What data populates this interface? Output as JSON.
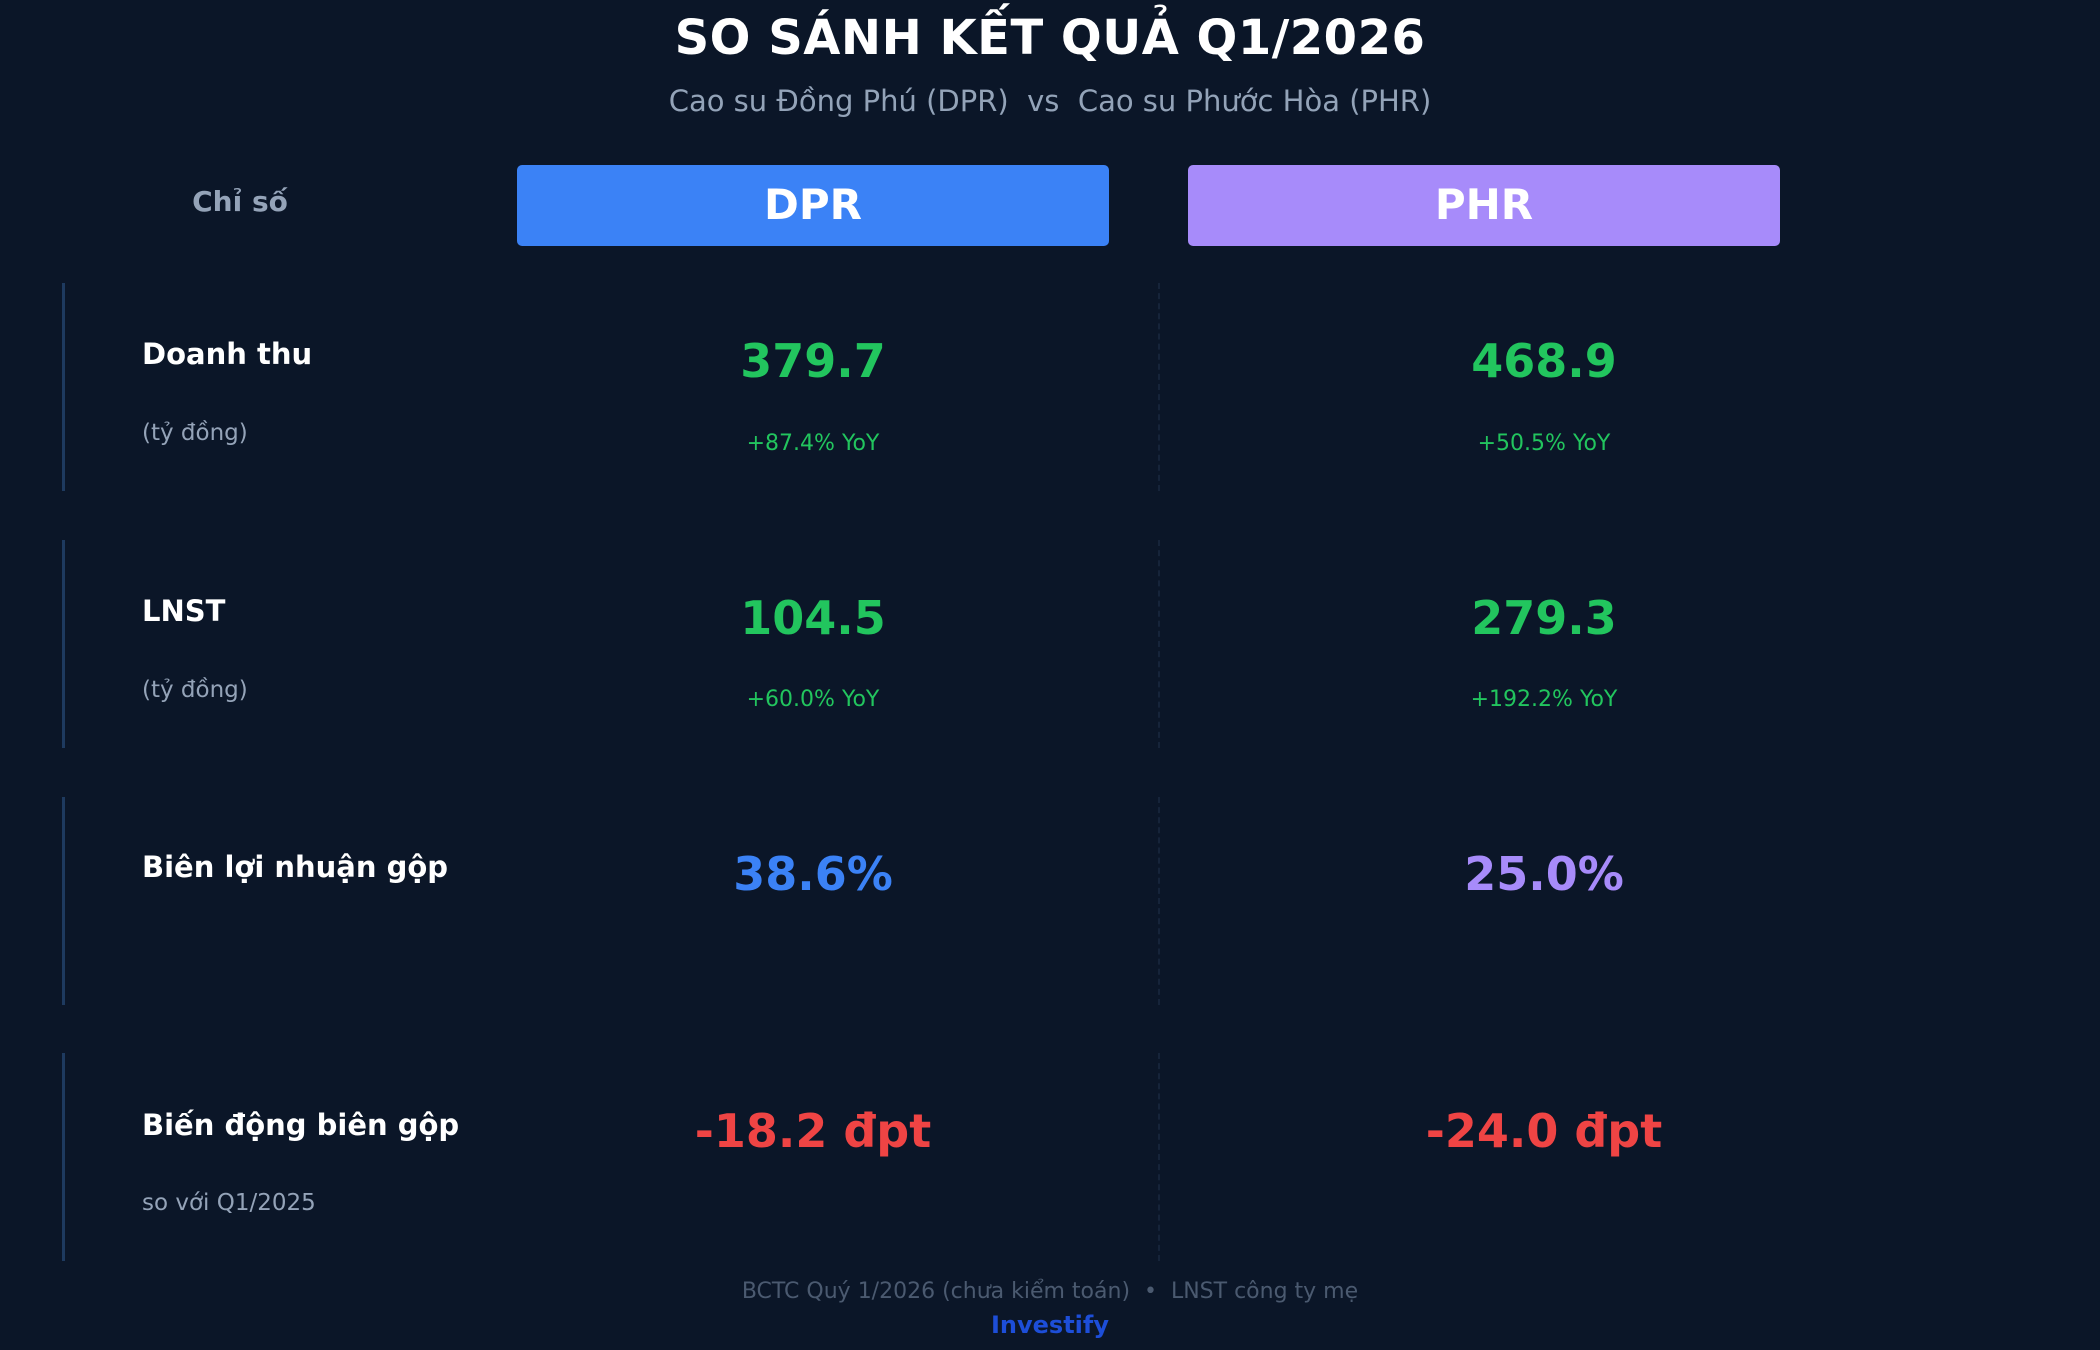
{
  "header": {
    "title": "SO SÁNH KẾT QUẢ Q1/2026",
    "subtitle": "Cao su Đồng Phú (DPR)  vs  Cao su Phước Hòa (PHR)"
  },
  "columns": {
    "label": "Chỉ số",
    "dpr": {
      "label": "DPR",
      "color": "#3b82f6"
    },
    "phr": {
      "label": "PHR",
      "color": "#a78bfa"
    }
  },
  "colors": {
    "positive": "#22c55e",
    "negative": "#ef4444",
    "background": "#0b1628",
    "brand": "#1d4ed8"
  },
  "rows": [
    {
      "name": "Doanh thu",
      "unit": "(tỷ đồng)",
      "dpr_value": "379.7",
      "dpr_yoy": "+87.4% YoY",
      "phr_value": "468.9",
      "phr_yoy": "+50.5% YoY"
    },
    {
      "name": "LNST",
      "unit": "(tỷ đồng)",
      "dpr_value": "104.5",
      "dpr_yoy": "+60.0% YoY",
      "phr_value": "279.3",
      "phr_yoy": "+192.2% YoY"
    },
    {
      "name": "Biên lợi nhuận gộp",
      "unit": "",
      "dpr_value": "38.6%",
      "dpr_yoy": "",
      "phr_value": "25.0%",
      "phr_yoy": ""
    },
    {
      "name": "Biến động biên gộp",
      "unit": "so với Q1/2025",
      "dpr_value": "-18.2 đpt",
      "dpr_yoy": "",
      "phr_value": "-24.0 đpt",
      "phr_yoy": ""
    }
  ],
  "footer": {
    "note": "BCTC Quý 1/2026 (chưa kiểm toán)  •  LNST công ty mẹ",
    "brand": "Investify"
  }
}
